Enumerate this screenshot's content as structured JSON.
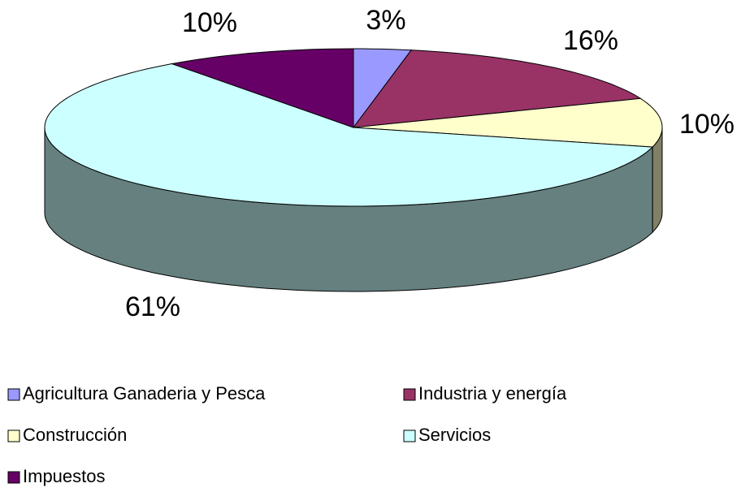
{
  "chart_data": {
    "type": "pie3d",
    "categories": [
      "Agricultura Ganaderia y Pesca",
      "Industria y energía",
      "Construcción",
      "Servicios",
      "Impuestos"
    ],
    "values": [
      3,
      16,
      10,
      61,
      10
    ],
    "value_labels": [
      "3%",
      "16%",
      "10%",
      "61%",
      "10%"
    ],
    "colors": [
      "#9999ff",
      "#993366",
      "#ffffcc",
      "#ccffff",
      "#660066"
    ],
    "legend": "bottom"
  }
}
